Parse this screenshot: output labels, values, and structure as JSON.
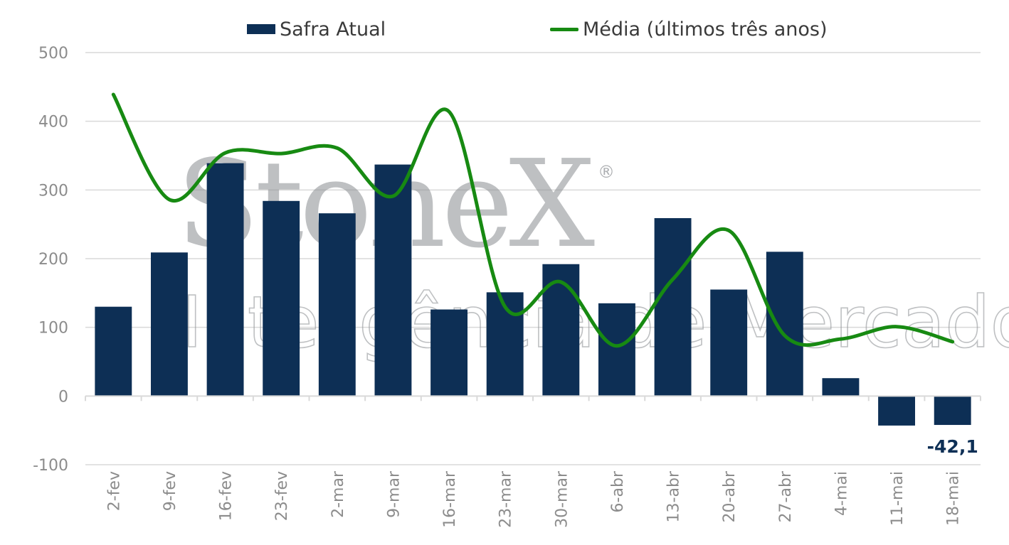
{
  "chart_data": {
    "type": "bar",
    "categories": [
      "2-fev",
      "9-fev",
      "16-fev",
      "23-fev",
      "2-mar",
      "9-mar",
      "16-mar",
      "23-mar",
      "30-mar",
      "6-abr",
      "13-abr",
      "20-abr",
      "27-abr",
      "4-mai",
      "11-mai",
      "18-mai"
    ],
    "series": [
      {
        "name": "Safra Atual",
        "type": "bar",
        "color": "#0d2f55",
        "values": [
          130,
          209,
          339,
          284,
          266,
          337,
          126,
          151,
          192,
          135,
          259,
          155,
          210,
          26,
          -43,
          -42.1
        ]
      },
      {
        "name": "Média (últimos três anos)",
        "type": "line",
        "color": "#178a12",
        "values": [
          439,
          286,
          354,
          353,
          361,
          291,
          414,
          130,
          166,
          73,
          170,
          241,
          88,
          83,
          101,
          79
        ]
      }
    ],
    "data_labels": [
      {
        "category": "18-mai",
        "series": "Safra Atual",
        "text": "-42,1"
      }
    ],
    "ylim": [
      -100,
      500
    ],
    "yticks": [
      500,
      400,
      300,
      200,
      100,
      0,
      -100
    ],
    "grid": true,
    "legend_position": "top"
  },
  "legend": {
    "bar_label": "Safra Atual",
    "line_label": "Média (últimos três anos)"
  },
  "watermark": {
    "brand": "StoneX",
    "registered_mark": "®",
    "tagline": "Inteligência de Mercado"
  }
}
